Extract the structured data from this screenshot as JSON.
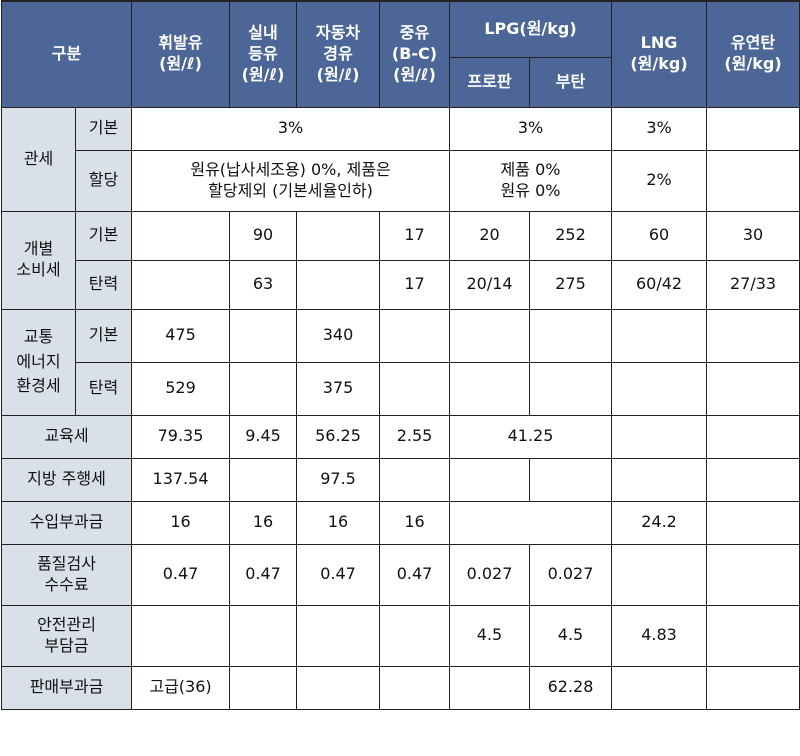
{
  "header": {
    "category": "구분",
    "gasoline": "휘발유\n(원/ℓ)",
    "kerosene": "실내\n등유\n(원/ℓ)",
    "diesel": "자동차\n경유\n(원/ℓ)",
    "heavy_oil": "중유\n(B-C)\n(원/ℓ)",
    "lpg": "LPG(원/kg)",
    "propane": "프로판",
    "butane": "부탄",
    "lng": "LNG\n(원/kg)",
    "bituminous": "유연탄\n(원/kg)"
  },
  "rows": {
    "tariff": {
      "label": "관세",
      "basic_label": "기본",
      "basic_oil": "3%",
      "basic_lpg": "3%",
      "basic_lng": "3%",
      "quota_label": "할당",
      "quota_oil": "원유(납사세조용) 0%, 제품은\n할당제외 (기본세율인하)",
      "quota_lpg": "제품 0%\n원유 0%",
      "quota_lng": "2%"
    },
    "excise": {
      "label": "개별\n소비세",
      "basic_label": "기본",
      "basic": [
        "",
        "90",
        "",
        "17",
        "20",
        "252",
        "60",
        "30"
      ],
      "flex_label": "탄력",
      "flex": [
        "",
        "63",
        "",
        "17",
        "20/14",
        "275",
        "60/42",
        "27/33"
      ]
    },
    "transport": {
      "label": "교통\n에너지\n환경세",
      "basic_label": "기본",
      "basic": [
        "475",
        "",
        "340",
        "",
        "",
        "",
        "",
        ""
      ],
      "flex_label": "탄력",
      "flex": [
        "529",
        "",
        "375",
        "",
        "",
        "",
        "",
        ""
      ]
    },
    "education": {
      "label": "교육세",
      "values": [
        "79.35",
        "9.45",
        "56.25",
        "2.55"
      ],
      "lpg": "41.25"
    },
    "local_driving": {
      "label": "지방 주행세",
      "values": [
        "137.54",
        "",
        "97.5",
        "",
        "",
        "",
        "",
        ""
      ]
    },
    "import_levy": {
      "label": "수입부과금",
      "values": [
        "16",
        "16",
        "16",
        "16"
      ],
      "lpg": "",
      "lng": "24.2"
    },
    "quality_fee": {
      "label": "품질검사\n수수료",
      "values": [
        "0.47",
        "0.47",
        "0.47",
        "0.47",
        "0.027",
        "0.027",
        "",
        ""
      ]
    },
    "safety_levy": {
      "label": "안전관리\n부담금",
      "values": [
        "",
        "",
        "",
        "",
        "4.5",
        "4.5",
        "4.83",
        ""
      ]
    },
    "sales_levy": {
      "label": "판매부과금",
      "gasoline": "고급(36)",
      "butane": "62.28"
    }
  }
}
